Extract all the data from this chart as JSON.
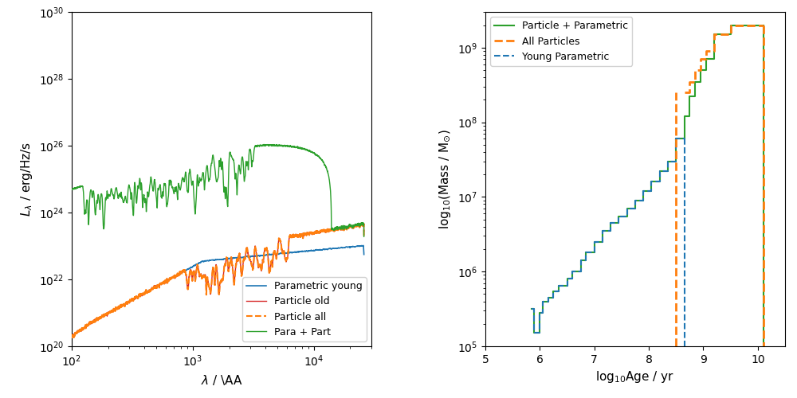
{
  "left": {
    "xlim": [
      100,
      30000
    ],
    "ylim": [
      1e+20,
      1e+30
    ],
    "xlabel": "$\\lambda$ / \\AA",
    "ylabel": "$L_{\\lambda}$ / erg/Hz/s",
    "legend_labels": [
      "Parametric young",
      "Particle old",
      "Particle all",
      "Para + Part"
    ],
    "legend_colors": [
      "#1f77b4",
      "#d62728",
      "#ff7f0e",
      "#2ca02c"
    ],
    "legend_ls": [
      "-",
      "-",
      "--",
      "-"
    ]
  },
  "right": {
    "xlim": [
      5,
      10.5
    ],
    "ylim": [
      100000.0,
      3000000000.0
    ],
    "xlabel": "log$_{10}$Age / yr",
    "ylabel": "log$_{10}$(Mass / M$_{\\odot}$)",
    "legend_labels": [
      "Particle + Parametric",
      "All Particles",
      "Young Parametric"
    ],
    "legend_colors": [
      "#2ca02c",
      "#ff7f0e",
      "#1f77b4"
    ],
    "legend_ls": [
      "-",
      "--",
      "--"
    ]
  },
  "right_bins": {
    "edges": [
      5.85,
      5.9,
      6.0,
      6.05,
      6.15,
      6.25,
      6.35,
      6.5,
      6.6,
      6.75,
      6.85,
      7.0,
      7.15,
      7.3,
      7.45,
      7.6,
      7.75,
      7.9,
      8.05,
      8.2,
      8.35,
      8.5,
      8.65,
      8.75,
      8.85,
      8.95,
      9.05,
      9.2,
      9.5,
      9.7,
      9.9,
      10.0,
      10.1
    ],
    "blue_vals": [
      320000.0,
      150000.0,
      280000.0,
      400000.0,
      450000.0,
      550000.0,
      650000.0,
      800000.0,
      1000000.0,
      1400000.0,
      1800000.0,
      2500000.0,
      3500000.0,
      4500000.0,
      5500000.0,
      7000000.0,
      9000000.0,
      12000000.0,
      16000000.0,
      22000000.0,
      30000000.0,
      60000000.0,
      0,
      0,
      0,
      0,
      0,
      0,
      0,
      0,
      0,
      0
    ],
    "green_vals": [
      320000.0,
      150000.0,
      280000.0,
      400000.0,
      450000.0,
      550000.0,
      650000.0,
      800000.0,
      1000000.0,
      1400000.0,
      1800000.0,
      2500000.0,
      3500000.0,
      4500000.0,
      5500000.0,
      7000000.0,
      9000000.0,
      12000000.0,
      16000000.0,
      22000000.0,
      30000000.0,
      60000000.0,
      120000000.0,
      220000000.0,
      350000000.0,
      500000000.0,
      700000000.0,
      1500000000.0,
      2000000000.0,
      2000000000.0,
      2000000000.0,
      2000000000.0
    ],
    "orange_vals": [
      0,
      0,
      0,
      0,
      0,
      0,
      0,
      0,
      0,
      0,
      0,
      0,
      0,
      0,
      0,
      0,
      0,
      0,
      0,
      0,
      0,
      0,
      250000000.0,
      350000000.0,
      500000000.0,
      700000000.0,
      900000000.0,
      1500000000.0,
      2000000000.0,
      2000000000.0,
      2000000000.0,
      2000000000.0
    ],
    "blue_cutoff_x": 8.65,
    "orange_cutoff_x": 8.5,
    "orange_start_x": 8.5
  }
}
